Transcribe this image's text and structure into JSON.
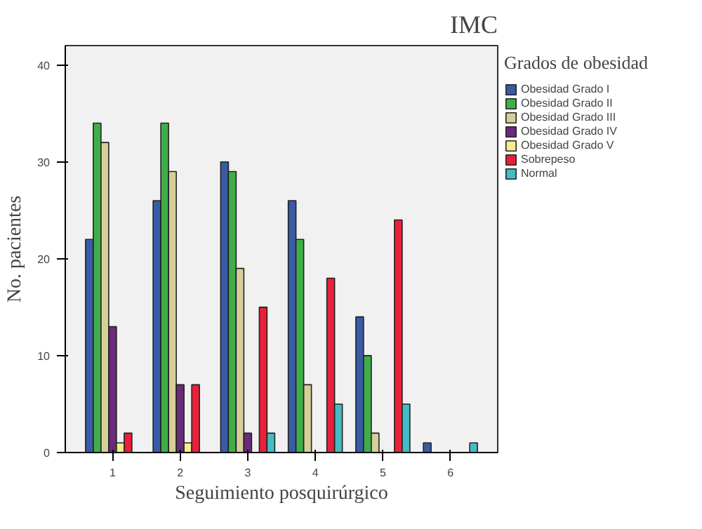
{
  "chart_data": {
    "type": "bar",
    "title": "IMC",
    "legend_title": "Grados de obesidad",
    "xlabel": "Seguimiento posquirúrgico",
    "ylabel": "No. pacientes",
    "categories": [
      "1",
      "2",
      "3",
      "4",
      "5",
      "6"
    ],
    "series": [
      {
        "name": "Obesidad Grado I",
        "color": "#3a5ba5",
        "values": [
          22,
          26,
          30,
          26,
          14,
          1
        ]
      },
      {
        "name": "Obesidad Grado II",
        "color": "#3fae4a",
        "values": [
          34,
          34,
          29,
          22,
          10,
          null
        ]
      },
      {
        "name": "Obesidad Grado III",
        "color": "#d6cf9a",
        "values": [
          32,
          29,
          19,
          7,
          2,
          null
        ]
      },
      {
        "name": "Obesidad Grado IV",
        "color": "#6b2a7a",
        "values": [
          13,
          7,
          2,
          null,
          null,
          null
        ]
      },
      {
        "name": "Obesidad Grado V",
        "color": "#f5ee8a",
        "values": [
          1,
          1,
          null,
          null,
          null,
          null
        ]
      },
      {
        "name": "Sobrepeso",
        "color": "#e8213a",
        "values": [
          2,
          7,
          15,
          18,
          24,
          null
        ]
      },
      {
        "name": "Normal",
        "color": "#45bcc4",
        "values": [
          null,
          null,
          2,
          5,
          5,
          1
        ]
      }
    ],
    "ylim": [
      0,
      42
    ],
    "yticks": [
      0,
      10,
      20,
      30,
      40
    ],
    "legend": "right"
  }
}
